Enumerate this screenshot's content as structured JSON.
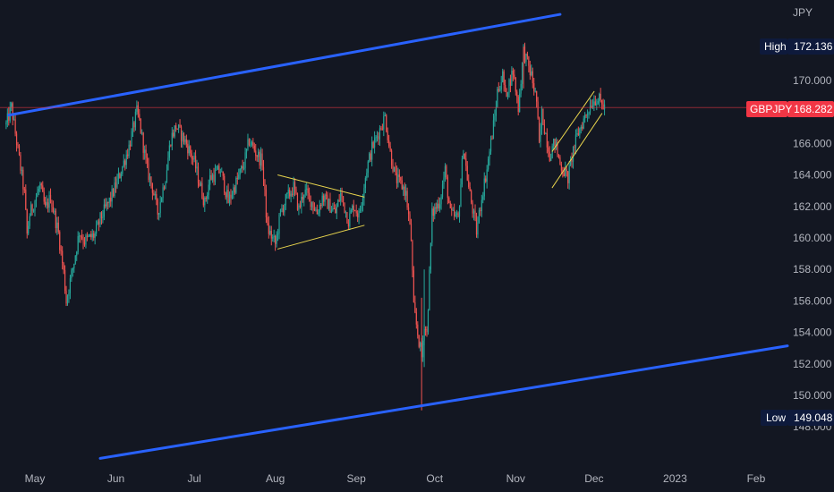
{
  "chart_data": {
    "type": "candlestick",
    "symbol": "GBPJPY",
    "currency": "JPY",
    "last_price": 168.282,
    "high": {
      "label": "High",
      "value": 172.136
    },
    "low": {
      "label": "Low",
      "value": 149.048
    },
    "x_ticks": [
      "May",
      "Jun",
      "Jul",
      "Aug",
      "Sep",
      "Oct",
      "Nov",
      "Dec",
      "2023",
      "Feb"
    ],
    "y_ticks": [
      "148.000",
      "150.000",
      "152.000",
      "154.000",
      "156.000",
      "158.000",
      "160.000",
      "162.000",
      "164.000",
      "166.000",
      "168.000",
      "170.000"
    ],
    "ylim": [
      146.0,
      172.6
    ],
    "grid": false,
    "colors": {
      "background": "#131722",
      "up": "#26a69a",
      "down": "#ef5350",
      "channel": "#2962ff",
      "pattern": "#e8d44d",
      "last_price_tag": "#f23645",
      "extreme_tag": "#0e1a3c"
    },
    "price_path": [
      [
        "2022-04-20",
        167.2
      ],
      [
        "2022-04-22",
        168.3
      ],
      [
        "2022-04-25",
        165.0
      ],
      [
        "2022-04-27",
        162.8
      ],
      [
        "2022-04-28",
        160.2
      ],
      [
        "2022-04-29",
        161.5
      ],
      [
        "2022-05-03",
        163.3
      ],
      [
        "2022-05-05",
        161.8
      ],
      [
        "2022-05-07",
        162.6
      ],
      [
        "2022-05-10",
        160.3
      ],
      [
        "2022-05-12",
        157.8
      ],
      [
        "2022-05-13",
        156.0
      ],
      [
        "2022-05-16",
        158.5
      ],
      [
        "2022-05-18",
        160.4
      ],
      [
        "2022-05-20",
        159.8
      ],
      [
        "2022-05-24",
        160.2
      ],
      [
        "2022-05-26",
        161.2
      ],
      [
        "2022-05-30",
        162.5
      ],
      [
        "2022-06-02",
        163.8
      ],
      [
        "2022-06-06",
        165.8
      ],
      [
        "2022-06-09",
        168.0
      ],
      [
        "2022-06-10",
        167.4
      ],
      [
        "2022-06-13",
        164.3
      ],
      [
        "2022-06-15",
        163.2
      ],
      [
        "2022-06-17",
        161.6
      ],
      [
        "2022-06-20",
        163.9
      ],
      [
        "2022-06-22",
        166.3
      ],
      [
        "2022-06-24",
        167.1
      ],
      [
        "2022-06-28",
        166.0
      ],
      [
        "2022-07-01",
        164.8
      ],
      [
        "2022-07-05",
        162.2
      ],
      [
        "2022-07-07",
        163.8
      ],
      [
        "2022-07-11",
        164.3
      ],
      [
        "2022-07-14",
        162.3
      ],
      [
        "2022-07-18",
        163.9
      ],
      [
        "2022-07-20",
        164.7
      ],
      [
        "2022-07-22",
        166.2
      ],
      [
        "2022-07-25",
        165.3
      ],
      [
        "2022-07-27",
        164.8
      ],
      [
        "2022-07-29",
        160.6
      ],
      [
        "2022-08-01",
        159.6
      ],
      [
        "2022-08-03",
        161.6
      ],
      [
        "2022-08-05",
        162.4
      ],
      [
        "2022-08-08",
        163.2
      ],
      [
        "2022-08-10",
        161.8
      ],
      [
        "2022-08-12",
        163.0
      ],
      [
        "2022-08-15",
        162.3
      ],
      [
        "2022-08-17",
        161.6
      ],
      [
        "2022-08-19",
        162.6
      ],
      [
        "2022-08-22",
        162.0
      ],
      [
        "2022-08-24",
        161.6
      ],
      [
        "2022-08-26",
        162.8
      ],
      [
        "2022-08-29",
        161.1
      ],
      [
        "2022-08-31",
        162.1
      ],
      [
        "2022-09-02",
        161.4
      ],
      [
        "2022-09-05",
        164.4
      ],
      [
        "2022-09-07",
        165.7
      ],
      [
        "2022-09-09",
        166.5
      ],
      [
        "2022-09-12",
        167.7
      ],
      [
        "2022-09-14",
        165.4
      ],
      [
        "2022-09-16",
        163.8
      ],
      [
        "2022-09-19",
        163.2
      ],
      [
        "2022-09-20",
        162.8
      ],
      [
        "2022-09-21",
        161.4
      ],
      [
        "2022-09-22",
        159.9
      ],
      [
        "2022-09-23",
        155.5
      ],
      [
        "2022-09-26",
        152.4
      ],
      [
        "2022-09-27",
        154.6
      ],
      [
        "2022-09-28",
        153.9
      ],
      [
        "2022-09-30",
        161.5
      ],
      [
        "2022-10-03",
        162.4
      ],
      [
        "2022-10-05",
        164.3
      ],
      [
        "2022-10-07",
        161.5
      ],
      [
        "2022-10-10",
        161.2
      ],
      [
        "2022-10-12",
        165.8
      ],
      [
        "2022-10-14",
        163.2
      ],
      [
        "2022-10-17",
        160.4
      ],
      [
        "2022-10-19",
        162.6
      ],
      [
        "2022-10-21",
        164.4
      ],
      [
        "2022-10-24",
        167.7
      ],
      [
        "2022-10-25",
        169.3
      ],
      [
        "2022-10-27",
        170.3
      ],
      [
        "2022-10-28",
        169.1
      ],
      [
        "2022-10-31",
        170.6
      ],
      [
        "2022-11-02",
        168.3
      ],
      [
        "2022-11-04",
        171.9
      ],
      [
        "2022-11-07",
        170.3
      ],
      [
        "2022-11-09",
        168.7
      ],
      [
        "2022-11-10",
        165.8
      ],
      [
        "2022-11-11",
        167.9
      ],
      [
        "2022-11-14",
        165.3
      ],
      [
        "2022-11-16",
        166.1
      ],
      [
        "2022-11-18",
        164.7
      ],
      [
        "2022-11-21",
        163.8
      ],
      [
        "2022-11-23",
        165.6
      ],
      [
        "2022-11-25",
        166.7
      ],
      [
        "2022-11-28",
        167.9
      ],
      [
        "2022-11-30",
        168.6
      ],
      [
        "2022-12-02",
        168.9
      ],
      [
        "2022-12-05",
        168.3
      ]
    ],
    "drawings": [
      {
        "kind": "channel",
        "from": [
          "2022-04-21",
          167.8
        ],
        "to": [
          "2022-11-18",
          174.2
        ]
      },
      {
        "kind": "channel",
        "from": [
          "2022-05-26",
          146.0
        ],
        "to": [
          "2023-02-15",
          153.2
        ]
      },
      {
        "kind": "pattern",
        "from": [
          "2022-08-02",
          164.0
        ],
        "to": [
          "2022-09-04",
          162.6
        ]
      },
      {
        "kind": "pattern",
        "from": [
          "2022-08-02",
          159.3
        ],
        "to": [
          "2022-09-04",
          160.8
        ]
      },
      {
        "kind": "pattern",
        "from": [
          "2022-11-15",
          163.2
        ],
        "to": [
          "2022-12-04",
          167.9
        ]
      },
      {
        "kind": "pattern",
        "from": [
          "2022-11-15",
          165.5
        ],
        "to": [
          "2022-12-01",
          169.3
        ]
      }
    ]
  }
}
